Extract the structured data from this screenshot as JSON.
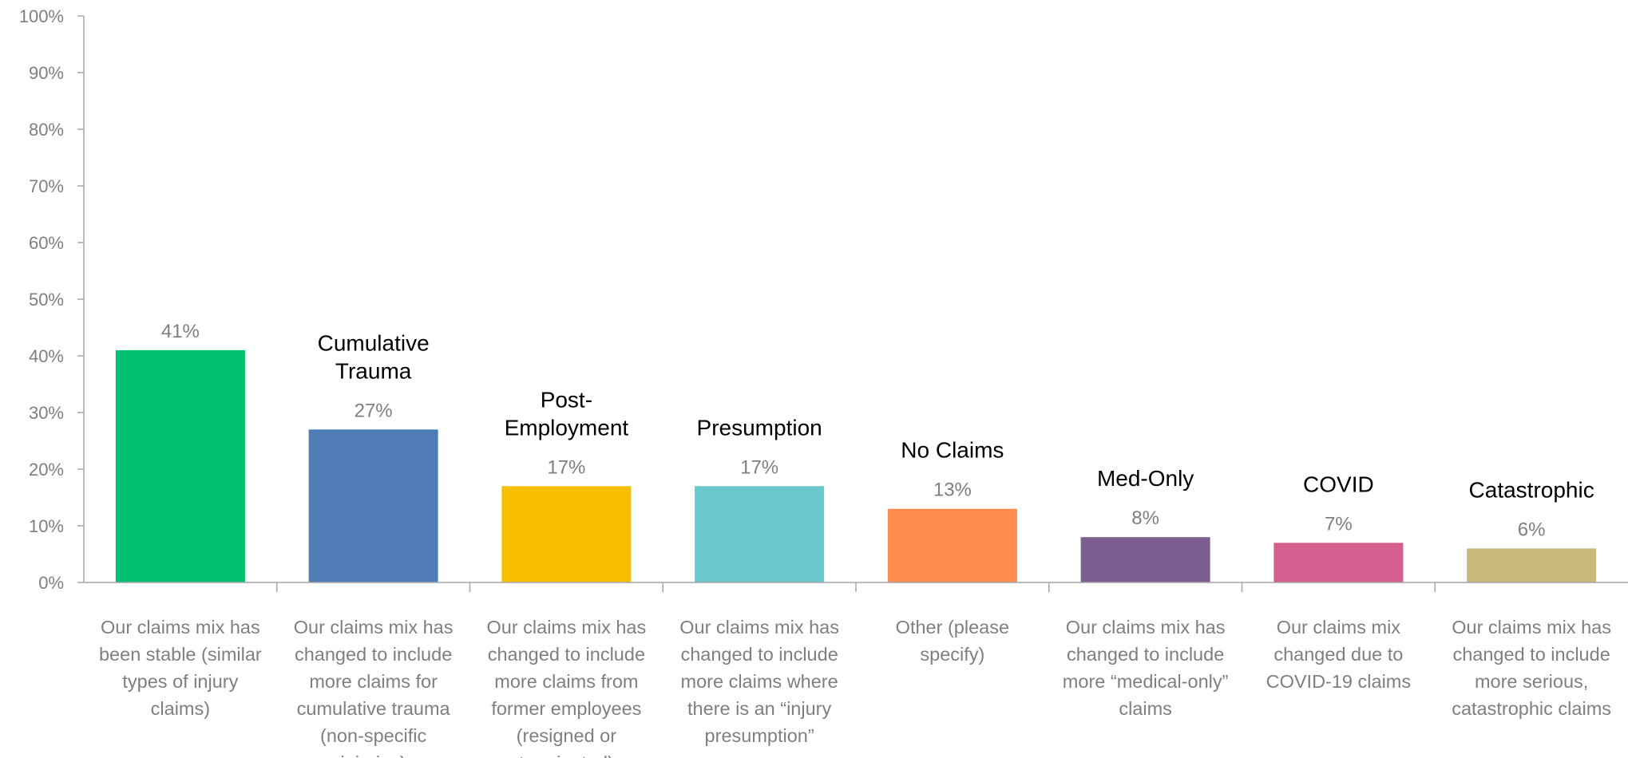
{
  "chart_data": {
    "type": "bar",
    "title": "",
    "xlabel": "",
    "ylabel": "",
    "ylim": [
      0,
      100
    ],
    "y_ticks": [
      "0%",
      "10%",
      "20%",
      "30%",
      "40%",
      "50%",
      "60%",
      "70%",
      "80%",
      "90%",
      "100%"
    ],
    "grid": false,
    "categories": [
      [
        "Our claims mix has",
        "been stable (similar",
        "types of injury",
        "claims)"
      ],
      [
        "Our claims mix has",
        "changed to include",
        "more claims for",
        "cumulative trauma",
        "(non-specific",
        "injuries)"
      ],
      [
        "Our claims mix has",
        "changed to include",
        "more claims from",
        "former employees",
        "(resigned or",
        "terminated)"
      ],
      [
        "Our claims mix has",
        "changed to include",
        "more claims where",
        "there is an “injury",
        "presumption”"
      ],
      [
        "Other (please",
        "specify)"
      ],
      [
        "Our claims mix has",
        "changed to include",
        "more “medical-only”",
        "claims"
      ],
      [
        "Our claims mix",
        "changed due to",
        "COVID-19 claims"
      ],
      [
        "Our claims mix has",
        "changed to include",
        "more serious,",
        "catastrophic claims"
      ]
    ],
    "values": [
      41,
      27,
      17,
      17,
      13,
      8,
      7,
      6
    ],
    "value_labels": [
      "41%",
      "27%",
      "17%",
      "17%",
      "13%",
      "8%",
      "7%",
      "6%"
    ],
    "annotations": [
      [],
      [
        "Cumulative",
        "Trauma"
      ],
      [
        "Post-",
        "Employment"
      ],
      [
        "Presumption"
      ],
      [
        "No Claims"
      ],
      [
        "Med-Only"
      ],
      [
        "COVID"
      ],
      [
        "Catastrophic"
      ]
    ],
    "colors": [
      "#00bf6f",
      "#507cb6",
      "#f7bf00",
      "#6bc8cd",
      "#ff8b4f",
      "#7d5e90",
      "#d65f8f",
      "#c9b97a"
    ]
  }
}
